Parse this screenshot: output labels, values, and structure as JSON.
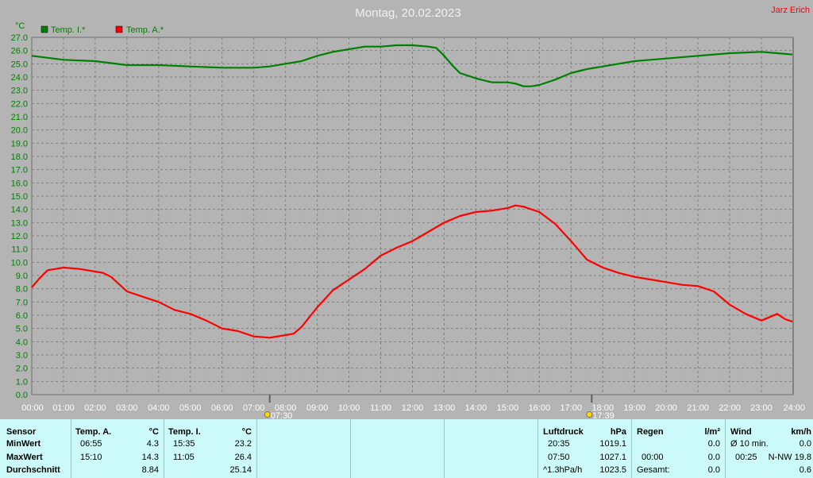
{
  "title": "Montag, 20.02.2023",
  "author": "Jarz Erich",
  "colors": {
    "green": "#008000",
    "red": "#ff0000",
    "bg": "#b4b4b4",
    "grid": "#808080",
    "summary_bg": "#ccfafa"
  },
  "chart_data": {
    "type": "line",
    "title": "Montag, 20.02.2023",
    "ylabel": "°C",
    "xlabel": "",
    "ylim": [
      0,
      27
    ],
    "xlim": [
      0,
      24
    ],
    "grid": true,
    "legend_position": "top-left",
    "y_ticks": [
      "0.0",
      "1.0",
      "2.0",
      "3.0",
      "4.0",
      "5.0",
      "6.0",
      "7.0",
      "8.0",
      "9.0",
      "10.0",
      "11.0",
      "12.0",
      "13.0",
      "14.0",
      "15.0",
      "16.0",
      "17.0",
      "18.0",
      "19.0",
      "20.0",
      "21.0",
      "22.0",
      "23.0",
      "24.0",
      "25.0",
      "26.0",
      "27.0"
    ],
    "x_ticks": [
      "00:00",
      "01:00",
      "02:00",
      "03:00",
      "04:00",
      "05:00",
      "06:00",
      "07:00",
      "08:00",
      "09:00",
      "10:00",
      "11:00",
      "12:00",
      "13:00",
      "14:00",
      "15:00",
      "16:00",
      "17:00",
      "18:00",
      "19:00",
      "20:00",
      "21:00",
      "22:00",
      "23:00",
      "24:00"
    ],
    "markers": [
      {
        "x": 7.5,
        "label": "07:30",
        "icon": "sunrise-icon"
      },
      {
        "x": 17.65,
        "label": "17:39",
        "icon": "sunset-icon"
      }
    ],
    "series": [
      {
        "name": "Temp. I.*",
        "color": "#008000",
        "x": [
          0,
          1,
          2,
          3,
          4,
          5,
          6,
          7,
          7.5,
          8,
          8.5,
          9,
          9.5,
          10,
          10.5,
          11,
          11.5,
          12,
          12.5,
          12.75,
          13,
          13.25,
          13.5,
          14,
          14.5,
          15,
          15.25,
          15.5,
          15.75,
          16,
          16.5,
          17,
          17.5,
          18,
          18.5,
          19,
          19.5,
          20,
          21,
          22,
          23,
          23.5,
          24
        ],
        "values": [
          25.6,
          25.3,
          25.2,
          24.9,
          24.9,
          24.8,
          24.7,
          24.7,
          24.8,
          25.0,
          25.2,
          25.6,
          25.9,
          26.1,
          26.3,
          26.3,
          26.4,
          26.4,
          26.3,
          26.2,
          25.6,
          24.9,
          24.3,
          23.9,
          23.6,
          23.6,
          23.5,
          23.3,
          23.3,
          23.4,
          23.8,
          24.3,
          24.6,
          24.8,
          25.0,
          25.2,
          25.3,
          25.4,
          25.6,
          25.8,
          25.9,
          25.8,
          25.7
        ]
      },
      {
        "name": "Temp. A.*",
        "color": "#ff0000",
        "x": [
          0,
          0.25,
          0.5,
          0.75,
          1,
          1.5,
          2,
          2.25,
          2.5,
          3,
          3.5,
          4,
          4.5,
          5,
          5.5,
          6,
          6.5,
          7,
          7.5,
          8,
          8.25,
          8.5,
          9,
          9.5,
          10,
          10.5,
          11,
          11.5,
          12,
          12.5,
          13,
          13.5,
          14,
          14.5,
          15,
          15.25,
          15.5,
          16,
          16.5,
          17,
          17.25,
          17.5,
          18,
          18.5,
          19,
          19.5,
          20,
          20.5,
          21,
          21.5,
          22,
          22.5,
          23,
          23.5,
          23.75,
          24
        ],
        "values": [
          8.1,
          8.8,
          9.4,
          9.5,
          9.6,
          9.5,
          9.3,
          9.2,
          8.9,
          7.8,
          7.4,
          7.0,
          6.4,
          6.1,
          5.6,
          5.0,
          4.8,
          4.4,
          4.3,
          4.5,
          4.6,
          5.1,
          6.6,
          7.9,
          8.7,
          9.5,
          10.5,
          11.1,
          11.6,
          12.3,
          13.0,
          13.5,
          13.8,
          13.9,
          14.1,
          14.3,
          14.2,
          13.8,
          12.9,
          11.6,
          10.9,
          10.2,
          9.6,
          9.2,
          8.9,
          8.7,
          8.5,
          8.3,
          8.2,
          7.8,
          6.8,
          6.1,
          5.6,
          6.1,
          5.7,
          5.5
        ]
      }
    ]
  },
  "summary": {
    "sensor": {
      "header": "Sensor",
      "min": "MinWert",
      "max": "MaxWert",
      "avg": "Durchschnitt"
    },
    "temp_a": {
      "header": "Temp. A.",
      "unit": "°C",
      "min_time": "06:55",
      "min": "4.3",
      "max_time": "15:10",
      "max": "14.3",
      "avg": "8.84"
    },
    "temp_i": {
      "header": "Temp. I.",
      "unit": "°C",
      "min_time": "15:35",
      "min": "23.2",
      "max_time": "11:05",
      "max": "26.4",
      "avg": "25.14"
    },
    "pressure": {
      "header": "Luftdruck",
      "unit": "hPa",
      "min_time": "20:35",
      "min": "1019.1",
      "max_time": "07:50",
      "max": "1027.1",
      "trend": "^1.3hPa/h",
      "current": "1023.5"
    },
    "rain": {
      "header": "Regen",
      "unit": "l/m²",
      "r1": "0.0",
      "max_time": "00:00",
      "r2": "0.0",
      "total_label": "Gesamt:",
      "total": "0.0"
    },
    "wind": {
      "header": "Wind",
      "unit": "km/h",
      "avg_label": "Ø 10 min.",
      "avg": "0.0",
      "max_time": "00:25",
      "max": "N-NW 19.8",
      "current": "0.6"
    }
  }
}
